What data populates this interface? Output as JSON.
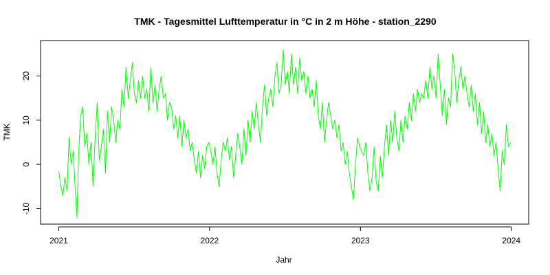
{
  "chart_data": {
    "type": "line",
    "title": "TMK - Tagesmittel Lufttemperatur in °C in 2 m Höhe -  station_2290",
    "xlabel": "Jahr",
    "ylabel": "TMK",
    "x_ticks": [
      {
        "label": "2021",
        "value": "2021-01-01"
      },
      {
        "label": "2022",
        "value": "2022-01-01"
      },
      {
        "label": "2023",
        "value": "2023-01-01"
      },
      {
        "label": "2024",
        "value": "2024-01-01"
      }
    ],
    "y_ticks": [
      -10,
      0,
      10,
      20
    ],
    "xlim": [
      "2020-11-18",
      "2024-02-12"
    ],
    "ylim": [
      -13.5,
      28
    ],
    "grid": false,
    "legend": "none",
    "series": [
      {
        "color": "#00ff00",
        "points": [
          [
            "2021-01-01",
            -1.5
          ],
          [
            "2021-01-06",
            -5
          ],
          [
            "2021-01-11",
            -7
          ],
          [
            "2021-01-16",
            -3
          ],
          [
            "2021-01-21",
            -6
          ],
          [
            "2021-01-26",
            6
          ],
          [
            "2021-01-31",
            0
          ],
          [
            "2021-02-05",
            3
          ],
          [
            "2021-02-10",
            -6
          ],
          [
            "2021-02-14",
            -12
          ],
          [
            "2021-02-18",
            2
          ],
          [
            "2021-02-23",
            11
          ],
          [
            "2021-02-28",
            13
          ],
          [
            "2021-03-05",
            4
          ],
          [
            "2021-03-10",
            7
          ],
          [
            "2021-03-15",
            0
          ],
          [
            "2021-03-20",
            5
          ],
          [
            "2021-03-25",
            -5
          ],
          [
            "2021-03-30",
            6
          ],
          [
            "2021-04-04",
            14
          ],
          [
            "2021-04-09",
            1
          ],
          [
            "2021-04-14",
            4
          ],
          [
            "2021-04-19",
            8
          ],
          [
            "2021-04-24",
            -2
          ],
          [
            "2021-04-29",
            12
          ],
          [
            "2021-05-04",
            5
          ],
          [
            "2021-05-09",
            13
          ],
          [
            "2021-05-14",
            10
          ],
          [
            "2021-05-19",
            5
          ],
          [
            "2021-05-24",
            10
          ],
          [
            "2021-05-29",
            8
          ],
          [
            "2021-06-03",
            17
          ],
          [
            "2021-06-08",
            13
          ],
          [
            "2021-06-13",
            22
          ],
          [
            "2021-06-18",
            15
          ],
          [
            "2021-06-23",
            19
          ],
          [
            "2021-06-28",
            23
          ],
          [
            "2021-07-03",
            16
          ],
          [
            "2021-07-08",
            14
          ],
          [
            "2021-07-13",
            19
          ],
          [
            "2021-07-18",
            15
          ],
          [
            "2021-07-23",
            20
          ],
          [
            "2021-07-28",
            15
          ],
          [
            "2021-08-02",
            17
          ],
          [
            "2021-08-07",
            12
          ],
          [
            "2021-08-12",
            22
          ],
          [
            "2021-08-17",
            14
          ],
          [
            "2021-08-22",
            18
          ],
          [
            "2021-08-27",
            12
          ],
          [
            "2021-09-01",
            17
          ],
          [
            "2021-09-06",
            20
          ],
          [
            "2021-09-11",
            15
          ],
          [
            "2021-09-16",
            16
          ],
          [
            "2021-09-21",
            10
          ],
          [
            "2021-09-26",
            14
          ],
          [
            "2021-10-01",
            13
          ],
          [
            "2021-10-06",
            8
          ],
          [
            "2021-10-11",
            11
          ],
          [
            "2021-10-16",
            6
          ],
          [
            "2021-10-21",
            11
          ],
          [
            "2021-10-26",
            4
          ],
          [
            "2021-10-31",
            10
          ],
          [
            "2021-11-05",
            6
          ],
          [
            "2021-11-10",
            8
          ],
          [
            "2021-11-15",
            3
          ],
          [
            "2021-11-20",
            5
          ],
          [
            "2021-11-25",
            1
          ],
          [
            "2021-11-30",
            -2
          ],
          [
            "2021-12-05",
            3
          ],
          [
            "2021-12-10",
            -3
          ],
          [
            "2021-12-15",
            2
          ],
          [
            "2021-12-20",
            -1
          ],
          [
            "2021-12-25",
            4
          ],
          [
            "2021-12-30",
            5
          ],
          [
            "2022-01-04",
            3
          ],
          [
            "2022-01-09",
            0
          ],
          [
            "2022-01-14",
            4
          ],
          [
            "2022-01-19",
            -2
          ],
          [
            "2022-01-24",
            -5
          ],
          [
            "2022-01-29",
            1
          ],
          [
            "2022-02-03",
            5
          ],
          [
            "2022-02-08",
            3
          ],
          [
            "2022-02-13",
            6
          ],
          [
            "2022-02-18",
            1
          ],
          [
            "2022-02-23",
            4
          ],
          [
            "2022-02-28",
            -3
          ],
          [
            "2022-03-05",
            2
          ],
          [
            "2022-03-10",
            7
          ],
          [
            "2022-03-15",
            4
          ],
          [
            "2022-03-20",
            0
          ],
          [
            "2022-03-25",
            8
          ],
          [
            "2022-03-30",
            2
          ],
          [
            "2022-04-04",
            10
          ],
          [
            "2022-04-09",
            5
          ],
          [
            "2022-04-14",
            12
          ],
          [
            "2022-04-19",
            8
          ],
          [
            "2022-04-24",
            14
          ],
          [
            "2022-04-29",
            9
          ],
          [
            "2022-05-04",
            5
          ],
          [
            "2022-05-09",
            13
          ],
          [
            "2022-05-14",
            18
          ],
          [
            "2022-05-19",
            11
          ],
          [
            "2022-05-24",
            15
          ],
          [
            "2022-05-29",
            17
          ],
          [
            "2022-06-03",
            13
          ],
          [
            "2022-06-08",
            20
          ],
          [
            "2022-06-13",
            23
          ],
          [
            "2022-06-18",
            16
          ],
          [
            "2022-06-23",
            18
          ],
          [
            "2022-06-28",
            26
          ],
          [
            "2022-07-03",
            18
          ],
          [
            "2022-07-08",
            21
          ],
          [
            "2022-07-13",
            16
          ],
          [
            "2022-07-18",
            25
          ],
          [
            "2022-07-23",
            18
          ],
          [
            "2022-07-28",
            22
          ],
          [
            "2022-08-02",
            16
          ],
          [
            "2022-08-07",
            24
          ],
          [
            "2022-08-12",
            19
          ],
          [
            "2022-08-17",
            21
          ],
          [
            "2022-08-22",
            16
          ],
          [
            "2022-08-27",
            20
          ],
          [
            "2022-09-01",
            15
          ],
          [
            "2022-09-06",
            17
          ],
          [
            "2022-09-11",
            13
          ],
          [
            "2022-09-16",
            19
          ],
          [
            "2022-09-21",
            11
          ],
          [
            "2022-09-26",
            8
          ],
          [
            "2022-10-01",
            14
          ],
          [
            "2022-10-06",
            5
          ],
          [
            "2022-10-11",
            10
          ],
          [
            "2022-10-16",
            14
          ],
          [
            "2022-10-21",
            11
          ],
          [
            "2022-10-26",
            8
          ],
          [
            "2022-10-31",
            10
          ],
          [
            "2022-11-05",
            6
          ],
          [
            "2022-11-10",
            9
          ],
          [
            "2022-11-15",
            3
          ],
          [
            "2022-11-20",
            5
          ],
          [
            "2022-11-25",
            0
          ],
          [
            "2022-11-30",
            3
          ],
          [
            "2022-12-05",
            -2
          ],
          [
            "2022-12-10",
            -5
          ],
          [
            "2022-12-15",
            -8
          ],
          [
            "2022-12-20",
            0
          ],
          [
            "2022-12-25",
            6
          ],
          [
            "2022-12-30",
            4
          ],
          [
            "2023-01-04",
            3
          ],
          [
            "2023-01-09",
            2
          ],
          [
            "2023-01-14",
            5
          ],
          [
            "2023-01-19",
            -2
          ],
          [
            "2023-01-24",
            -6
          ],
          [
            "2023-01-29",
            -3
          ],
          [
            "2023-02-03",
            4
          ],
          [
            "2023-02-08",
            -4
          ],
          [
            "2023-02-13",
            -6
          ],
          [
            "2023-02-18",
            2
          ],
          [
            "2023-02-23",
            -3
          ],
          [
            "2023-02-28",
            4
          ],
          [
            "2023-03-05",
            9
          ],
          [
            "2023-03-10",
            2
          ],
          [
            "2023-03-15",
            10
          ],
          [
            "2023-03-20",
            5
          ],
          [
            "2023-03-25",
            12
          ],
          [
            "2023-03-30",
            6
          ],
          [
            "2023-04-04",
            3
          ],
          [
            "2023-04-09",
            10
          ],
          [
            "2023-04-14",
            5
          ],
          [
            "2023-04-19",
            11
          ],
          [
            "2023-04-24",
            8
          ],
          [
            "2023-04-29",
            14
          ],
          [
            "2023-05-04",
            10
          ],
          [
            "2023-05-09",
            16
          ],
          [
            "2023-05-14",
            12
          ],
          [
            "2023-05-19",
            17
          ],
          [
            "2023-05-24",
            14
          ],
          [
            "2023-05-29",
            16
          ],
          [
            "2023-06-03",
            15
          ],
          [
            "2023-06-08",
            19
          ],
          [
            "2023-06-13",
            15
          ],
          [
            "2023-06-18",
            22
          ],
          [
            "2023-06-23",
            17
          ],
          [
            "2023-06-28",
            20
          ],
          [
            "2023-07-03",
            15
          ],
          [
            "2023-07-08",
            25
          ],
          [
            "2023-07-13",
            18
          ],
          [
            "2023-07-18",
            11
          ],
          [
            "2023-07-23",
            17
          ],
          [
            "2023-07-28",
            9
          ],
          [
            "2023-08-02",
            15
          ],
          [
            "2023-08-07",
            13
          ],
          [
            "2023-08-12",
            25
          ],
          [
            "2023-08-17",
            21
          ],
          [
            "2023-08-22",
            14
          ],
          [
            "2023-08-27",
            19
          ],
          [
            "2023-09-01",
            22
          ],
          [
            "2023-09-06",
            17
          ],
          [
            "2023-09-11",
            20
          ],
          [
            "2023-09-16",
            16
          ],
          [
            "2023-09-21",
            13
          ],
          [
            "2023-09-26",
            18
          ],
          [
            "2023-10-01",
            12
          ],
          [
            "2023-10-06",
            16
          ],
          [
            "2023-10-11",
            9
          ],
          [
            "2023-10-16",
            14
          ],
          [
            "2023-10-21",
            7
          ],
          [
            "2023-10-26",
            12
          ],
          [
            "2023-10-31",
            5
          ],
          [
            "2023-11-05",
            9
          ],
          [
            "2023-11-10",
            4
          ],
          [
            "2023-11-15",
            7
          ],
          [
            "2023-11-20",
            2
          ],
          [
            "2023-11-25",
            5
          ],
          [
            "2023-11-30",
            -1
          ],
          [
            "2023-12-05",
            -6
          ],
          [
            "2023-12-10",
            3
          ],
          [
            "2023-12-15",
            0
          ],
          [
            "2023-12-20",
            9
          ],
          [
            "2023-12-25",
            4
          ],
          [
            "2023-12-31",
            5
          ]
        ]
      }
    ]
  }
}
